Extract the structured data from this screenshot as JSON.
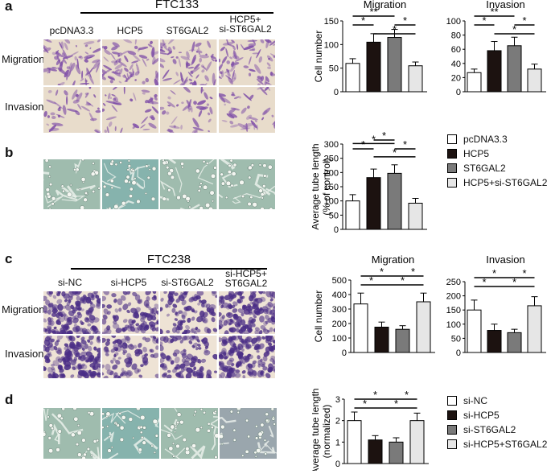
{
  "panels": {
    "a": {
      "letter": "a",
      "cell_line": "FTC133",
      "columns": [
        "pcDNA3.3",
        "HCP5",
        "ST6GAL2",
        "HCP5+\nsi-ST6GAL2"
      ],
      "rows": [
        "Migration",
        "Invasion"
      ]
    },
    "b": {
      "letter": "b"
    },
    "c": {
      "letter": "c",
      "cell_line": "FTC238",
      "columns": [
        "si-NC",
        "si-HCP5",
        "si-ST6GAL2",
        "si-HCP5+\nST6GAL2"
      ],
      "rows": [
        "Migration",
        "Invasion"
      ]
    },
    "d": {
      "letter": "d"
    }
  },
  "legends": {
    "top": [
      "pcDNA3.3",
      "HCP5",
      "ST6GAL2",
      "HCP5+si-ST6GAL2"
    ],
    "bottom": [
      "si-NC",
      "si-HCP5",
      "si-ST6GAL2",
      "si-HCP5+ST6GAL2"
    ]
  },
  "colors": {
    "bar_fills": [
      "#ffffff",
      "#1c1210",
      "#7a7a7a",
      "#e6e6e6"
    ],
    "micro_violet": "#7f4fa8",
    "micro_bg_a": "#e8dccb",
    "micro_bg_c": "#eee3d5",
    "tube_bg": "#9fbcae"
  },
  "chart_data": [
    {
      "type": "bar",
      "title": "Migration",
      "ylabel": "Cell number",
      "categories": [
        "pcDNA3.3",
        "HCP5",
        "ST6GAL2",
        "HCP5+si-ST6GAL2"
      ],
      "values": [
        60,
        105,
        115,
        55
      ],
      "errors": [
        10,
        18,
        17,
        8
      ],
      "ylim": [
        0,
        150
      ],
      "yticks": [
        "0",
        "50",
        "100",
        "150"
      ],
      "significance": [
        "**",
        "*",
        "*",
        "*"
      ]
    },
    {
      "type": "bar",
      "title": "Invasion",
      "ylabel": "",
      "categories": [
        "pcDNA3.3",
        "HCP5",
        "ST6GAL2",
        "HCP5+si-ST6GAL2"
      ],
      "values": [
        27,
        58,
        65,
        32
      ],
      "errors": [
        5,
        13,
        12,
        7
      ],
      "ylim": [
        0,
        100
      ],
      "yticks": [
        "0",
        "20",
        "40",
        "60",
        "80",
        "100"
      ],
      "significance": [
        "**",
        "*",
        "*",
        "*"
      ]
    },
    {
      "type": "bar",
      "title": "",
      "ylabel": "Average tube length\n(% of control)",
      "categories": [
        "pcDNA3.3",
        "HCP5",
        "ST6GAL2",
        "HCP5+si-ST6GAL2"
      ],
      "values": [
        100,
        182,
        197,
        92
      ],
      "errors": [
        22,
        30,
        30,
        17
      ],
      "ylim": [
        0,
        300
      ],
      "yticks": [
        "0",
        "50",
        "100",
        "150",
        "200",
        "250",
        "300"
      ],
      "significance": [
        "*",
        "*",
        "*",
        "*",
        "*"
      ]
    },
    {
      "type": "bar",
      "title": "Migration",
      "ylabel": "Cell number",
      "categories": [
        "si-NC",
        "si-HCP5",
        "si-ST6GAL2",
        "si-HCP5+ST6GAL2"
      ],
      "values": [
        335,
        175,
        160,
        350
      ],
      "errors": [
        75,
        35,
        25,
        60
      ],
      "ylim": [
        0,
        500
      ],
      "yticks": [
        "0",
        "100",
        "200",
        "300",
        "400",
        "500"
      ],
      "significance": [
        "*",
        "*",
        "*",
        "*"
      ]
    },
    {
      "type": "bar",
      "title": "Invasion",
      "ylabel": "",
      "categories": [
        "si-NC",
        "si-HCP5",
        "si-ST6GAL2",
        "si-HCP5+ST6GAL2"
      ],
      "values": [
        150,
        78,
        70,
        165
      ],
      "errors": [
        35,
        22,
        12,
        32
      ],
      "ylim": [
        0,
        250
      ],
      "yticks": [
        "0",
        "50",
        "100",
        "150",
        "200",
        "250"
      ],
      "significance": [
        "*",
        "*",
        "*",
        "*"
      ]
    },
    {
      "type": "bar",
      "title": "",
      "ylabel": "Average tube length\n(normalized)",
      "categories": [
        "si-NC",
        "si-HCP5",
        "si-ST6GAL2",
        "si-HCP5+ST6GAL2"
      ],
      "values": [
        2.0,
        1.1,
        1.0,
        2.0
      ],
      "errors": [
        0.4,
        0.2,
        0.2,
        0.35
      ],
      "ylim": [
        0,
        3
      ],
      "yticks": [
        "0",
        "1",
        "2",
        "3"
      ],
      "significance": [
        "*",
        "*",
        "*",
        "*"
      ]
    }
  ]
}
